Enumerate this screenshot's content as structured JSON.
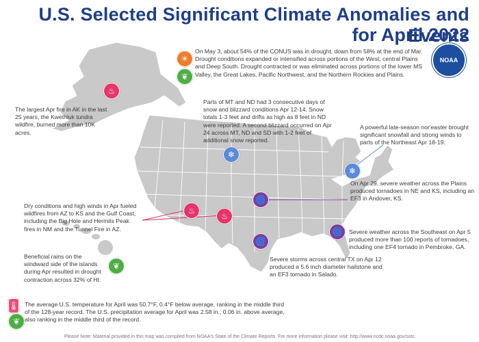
{
  "title": {
    "line1": "U.S. Selected Significant Climate Anomalies and Events",
    "line2": "for April 2022"
  },
  "logo": {
    "text": "NOAA",
    "icon": "noaa-logo"
  },
  "colors": {
    "title": "#1f3f86",
    "fire": "#e8336b",
    "snow": "#5b8ad6",
    "tornado": "#7d3f98",
    "drought": "#ef7d2d",
    "wet": "#4dae44",
    "land": "#c9c9c9"
  },
  "events": {
    "drought": "On May 3, about 54% of the CONUS was in drought, down from 58% at the end of Mar. Drought conditions expanded or intensified across portions of the West, central Plains and Deep South. Drought contracted or was eliminated across portions of the lower MS Valley, the Great Lakes, Pacific Northwest, and the Northern Rockies and Plains.",
    "alaska_fire": "The largest Apr fire in AK in the last 25 years, the Kwethluk tundra wildfire, burned more than 10K acres.",
    "mt_nd_snow": "Parts of MT and ND had 3 consecutive days of snow and blizzard conditions Apr 12-14. Snow totals 1-3 feet and drifts as high as 8 feet in ND were reported. A second blizzard occurred on Apr 24 across MT, ND and SD with 1-2 feet of additional snow reported.",
    "noreaster": "A powerful late-season nor'easter brought significant snowfall and strong winds to parts of the Northeast Apr 18-19.",
    "plains_tornado": "On Apr 29, severe weather across the Plains produced tornadoes in NE and KS, including an EF3 in Andover, KS.",
    "southwest_fire": "Dry conditions and high winds in Apr fueled wildfires from AZ to KS and the Gulf Coast, including the Big Hole and Hermits Peak fires in NM and the Tunnel Fire in AZ.",
    "southeast_tornado": "Severe weather across the Southeast on Apr 5 produced more than 100 reports of tornadoes, including one EF4 tornado in Pembroke, GA.",
    "hawaii": "Beneficial rains on the windward side of the islands during Apr resulted in drought contraction across 32% of HI.",
    "texas_storm": "Severe storms across central TX on Apr 12 produced a 5.6 inch diameter hailstone and an EF3 tornado in Salado.",
    "temperature": "The average U.S. temperature for April was 50.7°F, 0.4°F below average, ranking in the middle third of the 128-year record. The U.S. precipitation average for April was 2.58 in., 0.06 in. above average, also ranking in the middle third of the record."
  },
  "footer": "Please Note: Material provided in this map was compiled from NOAA's State of the Climate Reports. For more information please visit: http://www.ncdc.noaa.gov/sotc"
}
